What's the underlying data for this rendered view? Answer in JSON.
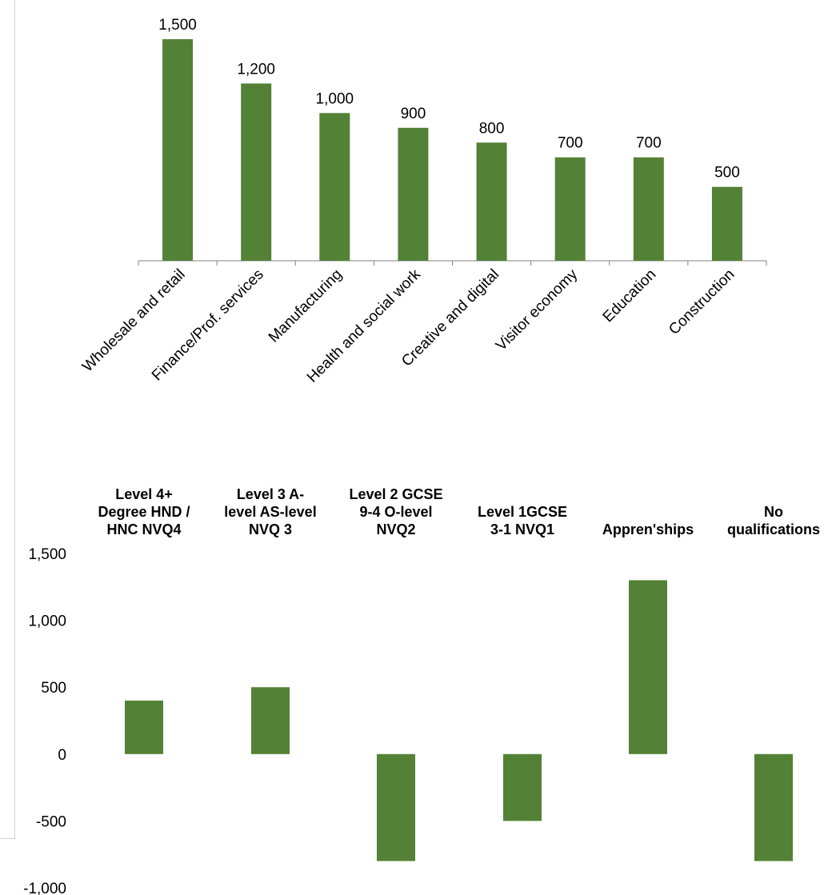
{
  "chart_data": [
    {
      "type": "bar",
      "title": "",
      "categories": [
        "Wholesale and retail",
        "Finance/Prof. services",
        "Manufacturing",
        "Health and social work",
        "Creative and digital",
        "Visitor economy",
        "Education",
        "Construction"
      ],
      "values": [
        1500,
        1200,
        1000,
        900,
        800,
        700,
        700,
        500
      ],
      "value_labels": [
        "1,500",
        "1,200",
        "1,000",
        "900",
        "800",
        "700",
        "700",
        "500"
      ],
      "ylim": [
        0,
        1500
      ],
      "color": "#538135",
      "grid": false
    },
    {
      "type": "bar",
      "title": "",
      "categories": [
        [
          "Level 4+",
          "Degree HND /",
          "HNC NVQ4"
        ],
        [
          "Level 3 A-",
          "level AS-level",
          "NVQ 3"
        ],
        [
          "Level 2 GCSE",
          "9-4 O-level",
          "NVQ2"
        ],
        [
          "Level 1GCSE",
          "3-1 NVQ1"
        ],
        [
          "Appren'ships"
        ],
        [
          "No",
          "qualifications"
        ]
      ],
      "values": [
        400,
        500,
        -800,
        -500,
        1300,
        -800
      ],
      "ylim": [
        -1000,
        1500
      ],
      "yticks": [
        "-1,000",
        "-500",
        "0",
        "500",
        "1,000",
        "1,500"
      ],
      "yticks_values": [
        -1000,
        -500,
        0,
        500,
        1000,
        1500
      ],
      "color": "#538135",
      "grid": false
    }
  ]
}
